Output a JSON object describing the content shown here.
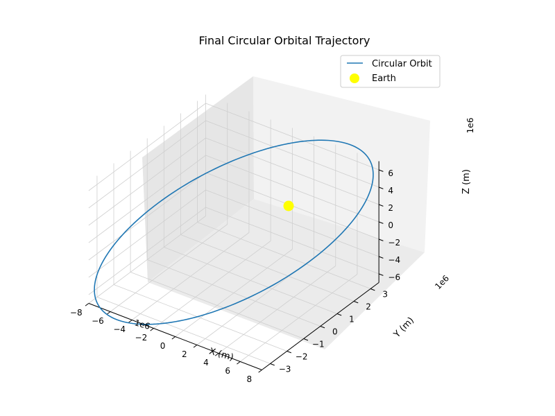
{
  "chart_data": {
    "type": "line3d",
    "title": "Final Circular Orbital Trajectory",
    "xlabel": "X (m)",
    "ylabel": "Y (m)",
    "zlabel": "Z (m)",
    "x_ticks": [
      "−8",
      "−6",
      "−4",
      "−2",
      "0",
      "2",
      "4",
      "6",
      "8"
    ],
    "y_ticks": [
      "−3",
      "−2",
      "−1",
      "0",
      "1",
      "2",
      "3"
    ],
    "z_ticks": [
      "−6",
      "−4",
      "−2",
      "0",
      "2",
      "4",
      "6"
    ],
    "x_offset": "1e6",
    "y_offset": "1e6",
    "z_offset": "1e6",
    "series": [
      {
        "name": "Circular Orbit",
        "color": "#1f77b4",
        "radius": 7000000,
        "center": [
          0,
          0,
          0
        ]
      }
    ],
    "points": [
      {
        "name": "Earth",
        "color": "#ffff00",
        "x": 0,
        "y": 0,
        "z": 0
      }
    ],
    "legend": [
      "Circular Orbit",
      "Earth"
    ],
    "legend_position": "top-right",
    "grid": true
  }
}
